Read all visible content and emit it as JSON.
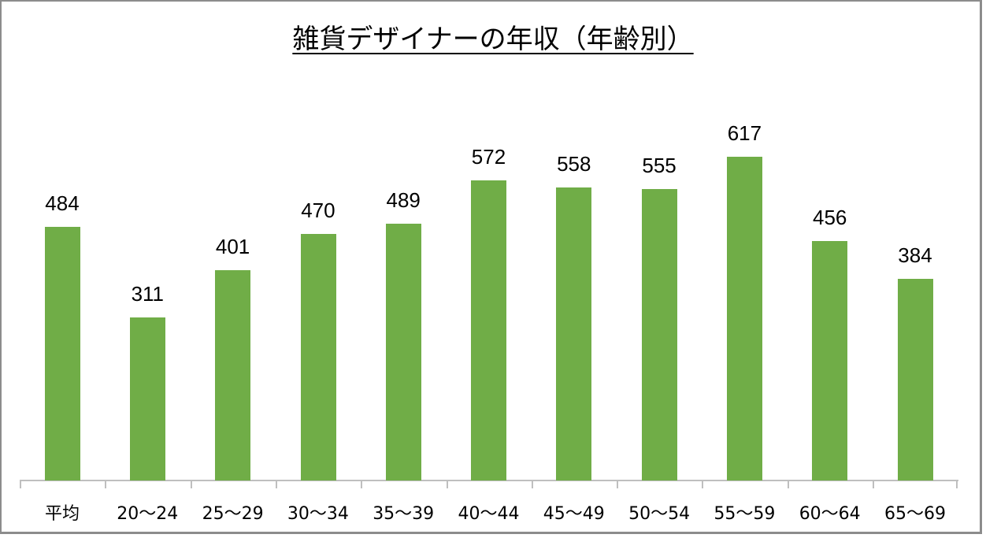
{
  "chart_data": {
    "type": "bar",
    "title": "雑貨デザイナーの年収（年齢別）",
    "xlabel": "",
    "ylabel": "",
    "categories": [
      "平均",
      "20〜24",
      "25〜29",
      "30〜34",
      "35〜39",
      "40〜44",
      "45〜49",
      "50〜54",
      "55〜59",
      "60〜64",
      "65〜69"
    ],
    "values": [
      484,
      311,
      401,
      470,
      489,
      572,
      558,
      555,
      617,
      456,
      384
    ],
    "ylim": [
      0,
      700
    ],
    "grid": false,
    "legend": "none",
    "bar_color": "#70AD47",
    "data_labels": true
  }
}
